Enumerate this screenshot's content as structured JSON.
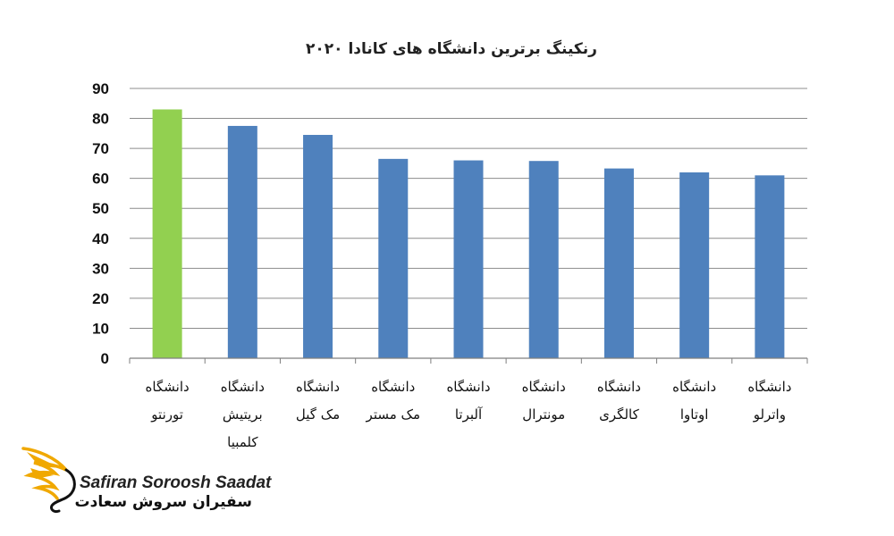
{
  "chart_data": {
    "type": "bar",
    "title": "رنکینگ برترین دانشگاه های کانادا ۲۰۲۰",
    "categories": [
      [
        "دانشگاه",
        "تورنتو"
      ],
      [
        "دانشگاه",
        "بریتیش",
        "کلمبیا"
      ],
      [
        "دانشگاه",
        "مک گیل"
      ],
      [
        "دانشگاه",
        "مک مستر"
      ],
      [
        "دانشگاه",
        "آلبرتا"
      ],
      [
        "دانشگاه",
        "مونترال"
      ],
      [
        "دانشگاه",
        "کالگری"
      ],
      [
        "دانشگاه",
        "اوتاوا"
      ],
      [
        "دانشگاه",
        "واترلو"
      ]
    ],
    "values": [
      83,
      77.5,
      74.5,
      66.5,
      66,
      65.8,
      63.3,
      62,
      61
    ],
    "ylim": [
      0,
      90
    ],
    "yticks": [
      0,
      10,
      20,
      30,
      40,
      50,
      60,
      70,
      80,
      90
    ],
    "grid": true,
    "bar_colors": [
      "#92d050",
      "#4f81bd",
      "#4f81bd",
      "#4f81bd",
      "#4f81bd",
      "#4f81bd",
      "#4f81bd",
      "#4f81bd",
      "#4f81bd"
    ]
  },
  "logo": {
    "text_en": "Safiran Soroosh Saadat",
    "text_fa": "سفیران سروش سعادت",
    "accent_color": "#f0a800"
  }
}
